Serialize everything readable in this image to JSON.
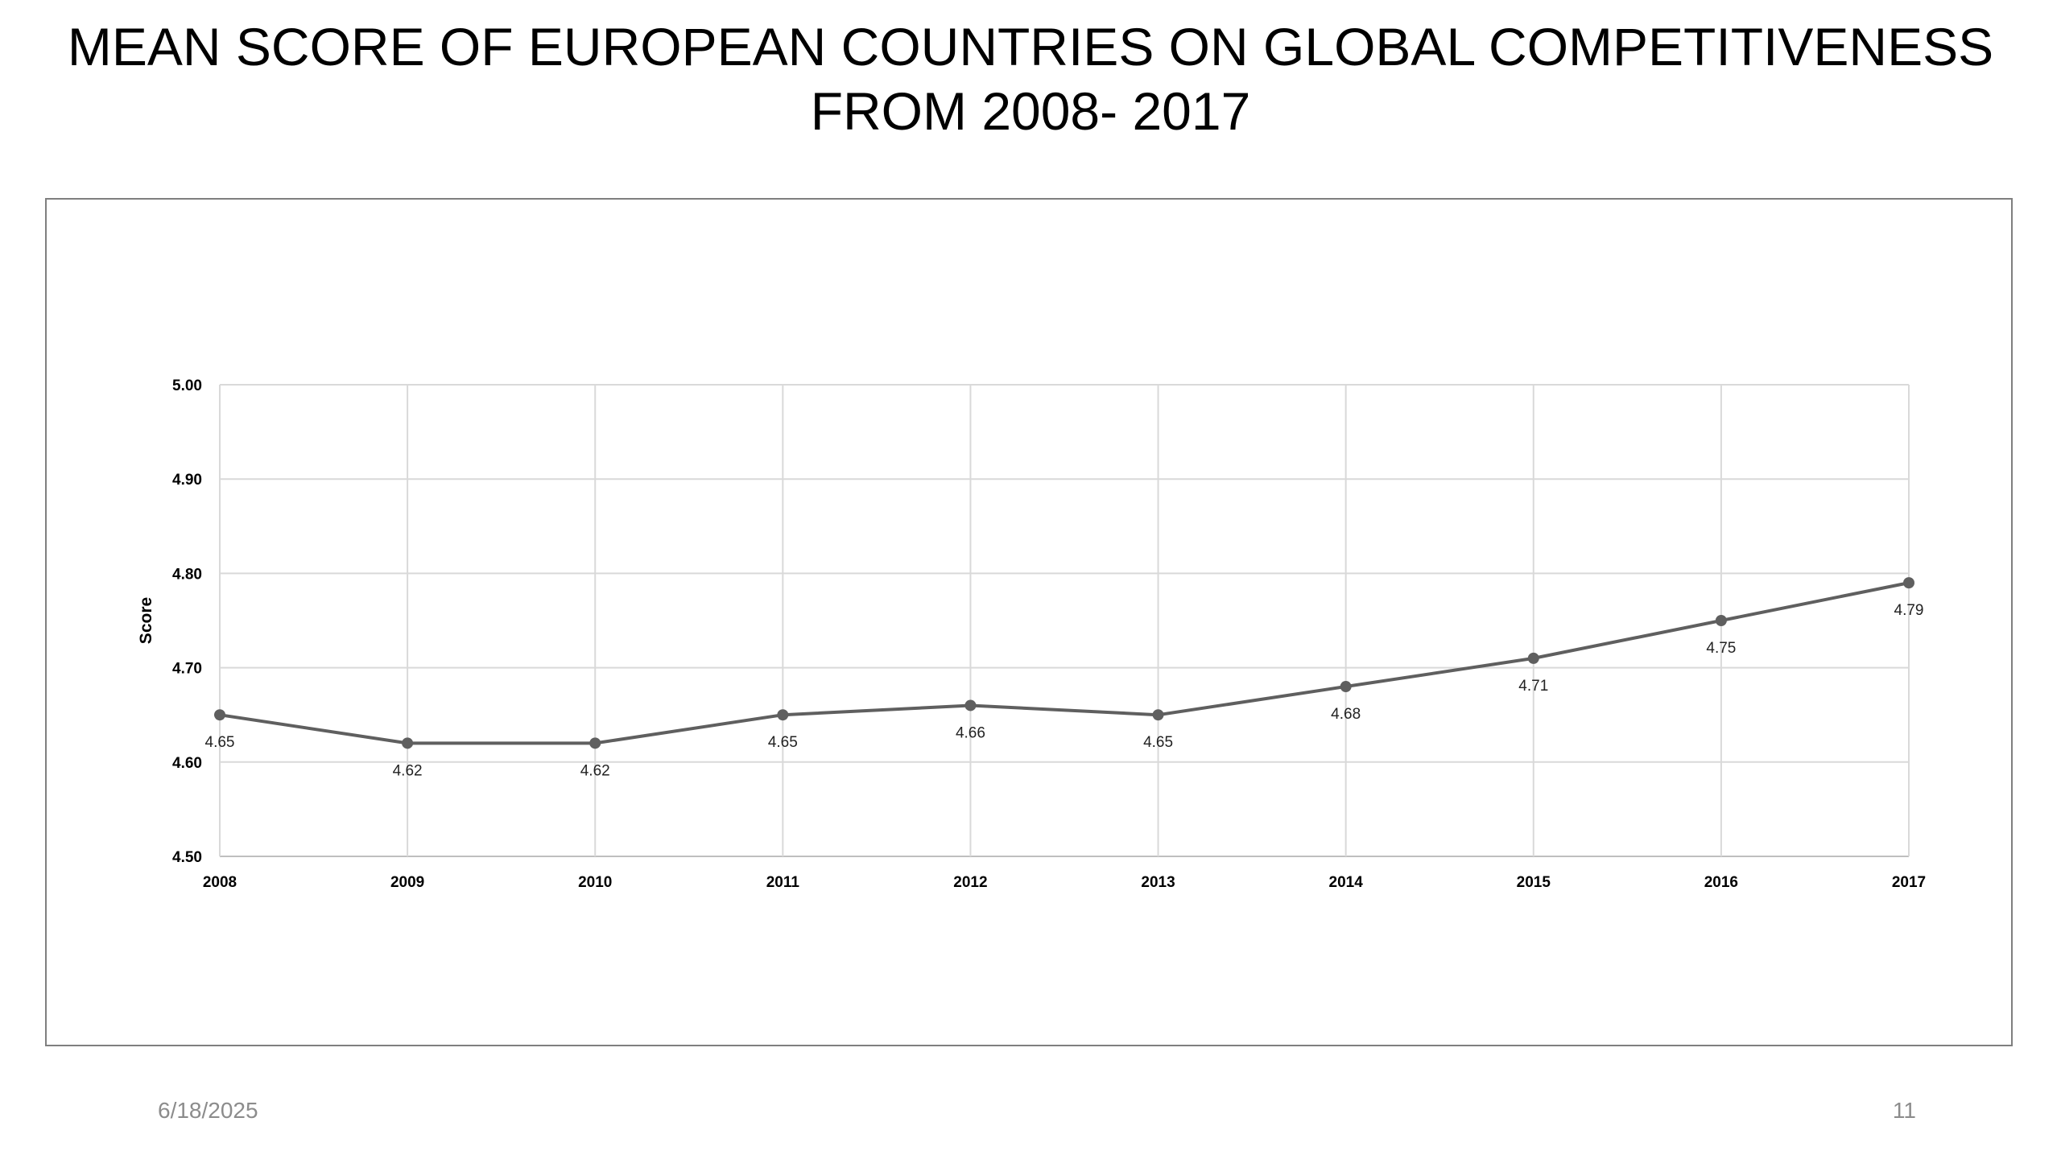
{
  "slide": {
    "title": "MEAN SCORE OF EUROPEAN COUNTRIES ON GLOBAL COMPETITIVENESS FROM 2008- 2017",
    "footer_date": "6/18/2025",
    "page_number": "11"
  },
  "colors": {
    "line": "#5f5f5f",
    "grid": "#d9d9d9",
    "frame": "#7f7f7f",
    "footer": "#8c8c8c"
  },
  "chart_data": {
    "type": "line",
    "title": "",
    "xlabel": "",
    "ylabel": "Score",
    "categories": [
      "2008",
      "2009",
      "2010",
      "2011",
      "2012",
      "2013",
      "2014",
      "2015",
      "2016",
      "2017"
    ],
    "series": [
      {
        "values": [
          4.65,
          4.62,
          4.62,
          4.65,
          4.66,
          4.65,
          4.68,
          4.71,
          4.75,
          4.79
        ],
        "labels": [
          "4.65",
          "4.62",
          "4.62",
          "4.65",
          "4.66",
          "4.65",
          "4.68",
          "4.71",
          "4.75",
          "4.79"
        ]
      }
    ],
    "ylim": [
      4.5,
      5.0
    ],
    "yticks": [
      4.5,
      4.6,
      4.7,
      4.8,
      4.9,
      5.0
    ],
    "ytick_labels": [
      "4.50",
      "4.60",
      "4.70",
      "4.80",
      "4.90",
      "5.00"
    ],
    "grid": true,
    "legend": "none"
  }
}
